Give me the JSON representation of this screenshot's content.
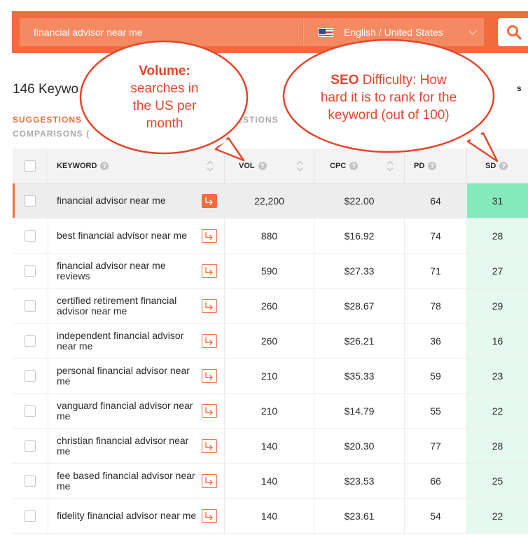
{
  "search": {
    "query": "financial advisor near me",
    "language": "English / United States",
    "flag_icon": "us-flag-icon",
    "search_icon": "search-icon"
  },
  "results": {
    "count_text": "146 Keywo",
    "right_edge": "s"
  },
  "tabs": {
    "suggestions": "SUGGESTIONS",
    "questions": "ESTIONS",
    "comparisons": "COMPARISONS ("
  },
  "table": {
    "headers": {
      "keyword": "KEYWORD",
      "vol": "VOL",
      "cpc": "CPC",
      "pd": "PD",
      "sd": "SD"
    },
    "rows": [
      {
        "keyword": "financial advisor near me",
        "vol": "22,200",
        "cpc": "$22.00",
        "pd": "64",
        "sd": "31"
      },
      {
        "keyword": "best financial advisor near me",
        "vol": "880",
        "cpc": "$16.92",
        "pd": "74",
        "sd": "28"
      },
      {
        "keyword": "financial advisor near me reviews",
        "vol": "590",
        "cpc": "$27.33",
        "pd": "71",
        "sd": "27"
      },
      {
        "keyword": "certified retirement financial advisor near me",
        "vol": "260",
        "cpc": "$28.67",
        "pd": "78",
        "sd": "29"
      },
      {
        "keyword": "independent financial advisor near me",
        "vol": "260",
        "cpc": "$26.21",
        "pd": "36",
        "sd": "16"
      },
      {
        "keyword": "personal financial advisor near me",
        "vol": "210",
        "cpc": "$35.33",
        "pd": "59",
        "sd": "23"
      },
      {
        "keyword": "vanguard financial advisor near me",
        "vol": "210",
        "cpc": "$14.79",
        "pd": "55",
        "sd": "22"
      },
      {
        "keyword": "christian financial advisor near me",
        "vol": "140",
        "cpc": "$20.30",
        "pd": "77",
        "sd": "28"
      },
      {
        "keyword": "fee based financial advisor near me",
        "vol": "140",
        "cpc": "$23.53",
        "pd": "66",
        "sd": "25"
      },
      {
        "keyword": "fidelity financial advisor near me",
        "vol": "140",
        "cpc": "$23.61",
        "pd": "54",
        "sd": "22"
      }
    ]
  },
  "callouts": {
    "volume": {
      "title": "Volume:",
      "line1": "searches in",
      "line2": "the US per",
      "line3": "month"
    },
    "sd": {
      "title": "SEO",
      "title_rest": " Difficulty: How",
      "line2": "hard it is to rank for the",
      "line3": "keyword (out of 100)"
    }
  },
  "colors": {
    "accent": "#f36b3c",
    "callout_red": "#e6442b",
    "sd_highlight": "#86e9bd",
    "sd_light": "#e5f9ee"
  }
}
